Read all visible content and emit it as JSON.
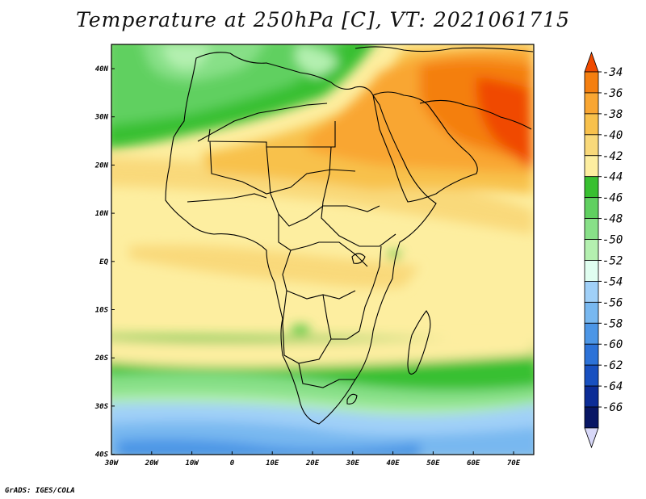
{
  "title": "Temperature at 250hPa [C], VT: 2021061715",
  "credit": "GrADS: IGES/COLA",
  "map": {
    "lon_labels": [
      "30W",
      "20W",
      "10W",
      "0",
      "10E",
      "20E",
      "30E",
      "40E",
      "50E",
      "60E",
      "70E"
    ],
    "lat_labels": [
      "40N",
      "30N",
      "20N",
      "10N",
      "EQ",
      "10S",
      "20S",
      "30S",
      "40S"
    ]
  },
  "colorbar": {
    "labels": [
      "-34",
      "-36",
      "-38",
      "-40",
      "-42",
      "-44",
      "-46",
      "-48",
      "-50",
      "-52",
      "-54",
      "-56",
      "-58",
      "-60",
      "-62",
      "-64",
      "-66"
    ],
    "colors": [
      "#f04a00",
      "#f47f10",
      "#f9a632",
      "#f8c14c",
      "#f9d97a",
      "#fdeea0",
      "#38c030",
      "#60d060",
      "#88e088",
      "#b4f0b0",
      "#e0fef0",
      "#a0d0f8",
      "#78b8f0",
      "#4c96e6",
      "#2c72d8",
      "#1850c0",
      "#0c2c96",
      "#081664",
      "#d8d8f8"
    ]
  }
}
